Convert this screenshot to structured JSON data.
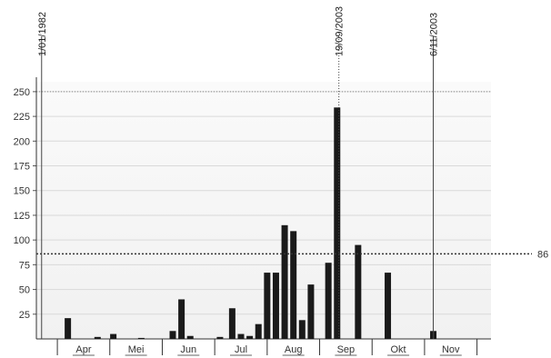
{
  "chart_data": {
    "type": "bar",
    "title": "",
    "xlabel": "",
    "ylabel": "",
    "ylim": [
      0,
      260
    ],
    "grid": true,
    "legend": "none",
    "y_ticks": [
      "25",
      "50",
      "75",
      "100",
      "125",
      "150",
      "175",
      "200",
      "225",
      "250"
    ],
    "x_start": "1982-03-15",
    "x_end": "1982-11-30",
    "months": [
      {
        "label": "Apr",
        "start": "1982-03-27",
        "end": "1982-04-26"
      },
      {
        "label": "Mei",
        "start": "1982-04-26",
        "end": "1982-05-26"
      },
      {
        "label": "Jun",
        "start": "1982-05-26",
        "end": "1982-06-25"
      },
      {
        "label": "Jul",
        "start": "1982-06-25",
        "end": "1982-07-25"
      },
      {
        "label": "Aug",
        "start": "1982-07-25",
        "end": "1982-08-24"
      },
      {
        "label": "Sep",
        "start": "1982-08-24",
        "end": "1982-09-23"
      },
      {
        "label": "Okt",
        "start": "1982-09-23",
        "end": "1982-10-23"
      },
      {
        "label": "Nov",
        "start": "1982-10-23",
        "end": "1982-11-22"
      }
    ],
    "series": [
      {
        "points": [
          {
            "date": "1982-04-02",
            "value": 21
          },
          {
            "date": "1982-04-19",
            "value": 2
          },
          {
            "date": "1982-04-28",
            "value": 5
          },
          {
            "date": "1982-05-14",
            "value": 1
          },
          {
            "date": "1982-06-01",
            "value": 8
          },
          {
            "date": "1982-06-06",
            "value": 40
          },
          {
            "date": "1982-06-11",
            "value": 3
          },
          {
            "date": "1982-06-28",
            "value": 2
          },
          {
            "date": "1982-07-05",
            "value": 31
          },
          {
            "date": "1982-07-10",
            "value": 5
          },
          {
            "date": "1982-07-15",
            "value": 3
          },
          {
            "date": "1982-07-20",
            "value": 15
          },
          {
            "date": "1982-07-25",
            "value": 67
          },
          {
            "date": "1982-07-30",
            "value": 67
          },
          {
            "date": "1982-08-04",
            "value": 115
          },
          {
            "date": "1982-08-09",
            "value": 109
          },
          {
            "date": "1982-08-14",
            "value": 19
          },
          {
            "date": "1982-08-19",
            "value": 55
          },
          {
            "date": "1982-08-29",
            "value": 77
          },
          {
            "date": "1982-09-03",
            "value": 234
          },
          {
            "date": "1982-09-15",
            "value": 95
          },
          {
            "date": "1982-10-02",
            "value": 67
          },
          {
            "date": "1982-10-28",
            "value": 8
          }
        ]
      }
    ],
    "reference_line": {
      "value": 86,
      "label": "86"
    },
    "markers": [
      {
        "date": "1982-03-18",
        "label": "1/01/1982",
        "style": "solid"
      },
      {
        "date": "1982-09-04",
        "label": "19/09/2003",
        "style": "dotted"
      },
      {
        "date": "1982-10-28",
        "label": "6/11/2003",
        "style": "solid"
      }
    ]
  }
}
